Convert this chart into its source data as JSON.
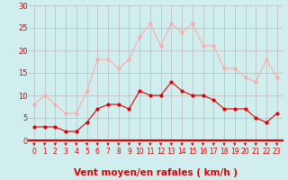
{
  "hours": [
    0,
    1,
    2,
    3,
    4,
    5,
    6,
    7,
    8,
    9,
    10,
    11,
    12,
    13,
    14,
    15,
    16,
    17,
    18,
    19,
    20,
    21,
    22,
    23
  ],
  "wind_avg": [
    3,
    3,
    3,
    2,
    2,
    4,
    7,
    8,
    8,
    7,
    11,
    10,
    10,
    13,
    11,
    10,
    10,
    9,
    7,
    7,
    7,
    5,
    4,
    6
  ],
  "wind_gust": [
    8,
    10,
    8,
    6,
    6,
    11,
    18,
    18,
    16,
    18,
    23,
    26,
    21,
    26,
    24,
    26,
    21,
    21,
    16,
    16,
    14,
    13,
    18,
    14
  ],
  "avg_color": "#dd0000",
  "gust_color": "#ffaaaa",
  "bg_color": "#d0eeee",
  "grid_color": "#bbbbbb",
  "xlabel": "Vent moyen/en rafales ( km/h )",
  "ylim": [
    0,
    30
  ],
  "yticks": [
    0,
    5,
    10,
    15,
    20,
    25,
    30
  ],
  "tick_color": "#dd0000",
  "xlabel_color": "#dd0000",
  "axis_label_fontsize": 7.5
}
